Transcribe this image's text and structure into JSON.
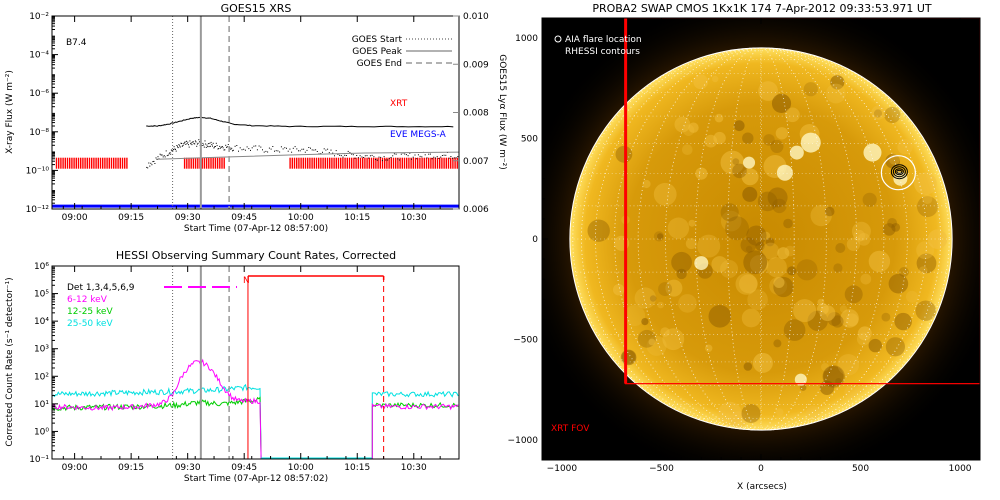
{
  "chart_data": [
    {
      "type": "line",
      "title": "GOES15 XRS",
      "xlabel": "Start Time (07-Apr-12 08:57:00)",
      "ylabel": "X-ray Flux (W m⁻²)",
      "ylabel2": "GOES15 Lyα Flux (W m⁻²)",
      "annotation": "B7.4",
      "xlim_min": [
        -3,
        105
      ],
      "x_tick_labels": [
        "09:00",
        "09:15",
        "09:30",
        "09:45",
        "10:00",
        "10:15",
        "10:30"
      ],
      "x_tick_minutes": [
        3,
        18,
        33,
        48,
        63,
        78,
        93
      ],
      "ylim_log": [
        -12,
        -2
      ],
      "y_tick_labels": [
        "10⁻¹²",
        "10⁻¹⁰",
        "10⁻⁸",
        "10⁻⁶",
        "10⁻⁴",
        "10⁻²"
      ],
      "y_tick_exps": [
        -12,
        -10,
        -8,
        -6,
        -4,
        -2
      ],
      "ylim2": [
        0.006,
        0.01
      ],
      "y2_tick_labels": [
        "0.006",
        "0.007",
        "0.008",
        "0.009",
        "0.010"
      ],
      "y2_tick_values": [
        0.006,
        0.007,
        0.008,
        0.009,
        0.01
      ],
      "goes_lines_min": {
        "start": 29,
        "peak": 36.5,
        "end": 44
      },
      "legend": [
        {
          "label": "GOES Start",
          "style": "dotted"
        },
        {
          "label": "GOES Peak",
          "style": "solid"
        },
        {
          "label": "GOES End",
          "style": "dashed"
        }
      ],
      "series": [
        {
          "name": "XRT",
          "color": "#ff0000",
          "label_at": [
            85,
            -7.1
          ]
        },
        {
          "name": "EVE MEGS-A",
          "color": "#0000ff",
          "label_at": [
            85,
            -9.2
          ]
        },
        {
          "name": "GOES long",
          "color": "#000000",
          "x": [
            22,
            25,
            28,
            31,
            34,
            36.5,
            39,
            42,
            45,
            50,
            60,
            75,
            90,
            105
          ],
          "y_log": [
            -7.7,
            -7.7,
            -7.6,
            -7.45,
            -7.3,
            -7.25,
            -7.3,
            -7.45,
            -7.6,
            -7.68,
            -7.72,
            -7.72,
            -7.73,
            -7.73
          ]
        },
        {
          "name": "GOES short",
          "color": "#000000",
          "x": [
            22,
            28,
            32,
            36,
            40,
            45,
            55,
            65,
            75,
            85,
            95,
            105
          ],
          "y_log": [
            -9.7,
            -9.0,
            -8.65,
            -8.55,
            -8.7,
            -8.8,
            -8.9,
            -8.9,
            -9.15,
            -9.3,
            -9.2,
            -9.2
          ]
        },
        {
          "name": "Lyα",
          "color": "#888888",
          "x": [
            25,
            40,
            60,
            80,
            105
          ],
          "y": [
            0.00703,
            0.00707,
            0.00712,
            0.00716,
            0.00718
          ]
        }
      ],
      "xrt_bars_min": [
        [
          -2,
          17
        ],
        [
          32,
          43
        ],
        [
          60,
          105
        ]
      ],
      "eve_level_log": -11.85
    },
    {
      "type": "line",
      "title": "HESSI Observing Summary Count Rates, Corrected",
      "xlabel": "Start Time (07-Apr-12 08:57:02)",
      "ylabel": "Corrected Count Rate (s⁻¹ detector⁻¹)",
      "xlim_min": [
        -3,
        105
      ],
      "x_tick_labels": [
        "09:00",
        "09:15",
        "09:30",
        "09:45",
        "10:00",
        "10:15",
        "10:30"
      ],
      "x_tick_minutes": [
        3,
        18,
        33,
        48,
        63,
        78,
        93
      ],
      "ylim_log": [
        -1,
        6
      ],
      "y_tick_labels": [
        "10⁻¹",
        "10⁰",
        "10¹",
        "10²",
        "10³",
        "10⁴",
        "10⁵",
        "10⁶"
      ],
      "y_tick_exps": [
        -1,
        0,
        1,
        2,
        3,
        4,
        5,
        6
      ],
      "goes_lines_min": {
        "start": 29,
        "peak": 36.5,
        "end": 44
      },
      "red_lines_min": {
        "solid": 49,
        "dashed": 85
      },
      "night_label": "N",
      "legend_title": "Det 1,3,4,5,6,9",
      "series": [
        {
          "name": "6-12 keV",
          "color": "#ff00ff",
          "x": [
            -3,
            10,
            20,
            26,
            29,
            31,
            33,
            35,
            37,
            39,
            41,
            43,
            45,
            47,
            49,
            52.5
          ],
          "y_log": [
            0.9,
            0.85,
            0.9,
            1.0,
            1.3,
            1.9,
            2.3,
            2.5,
            2.5,
            2.3,
            1.9,
            1.5,
            1.2,
            1.1,
            1.1,
            1.1
          ]
        },
        {
          "name": "12-25 keV",
          "color": "#00cc00",
          "x": [
            -3,
            20,
            30,
            36,
            42,
            49,
            52.5
          ],
          "y_log": [
            0.85,
            0.9,
            0.95,
            1.05,
            1.0,
            1.1,
            1.15
          ]
        },
        {
          "name": "25-50 keV",
          "color": "#00e0e0",
          "x": [
            -3,
            15,
            30,
            40,
            45,
            49,
            52.5
          ],
          "y_log": [
            1.35,
            1.4,
            1.45,
            1.5,
            1.55,
            1.6,
            1.6
          ]
        }
      ],
      "after_gap": {
        "start_min": 82,
        "end_min": 105,
        "cyan": 1.35,
        "magenta": 0.9,
        "green": 0.95
      }
    },
    {
      "type": "image",
      "title": "PROBA2 SWAP CMOS 1Kx1K 174   7-Apr-2012 09:33:53.971 UT",
      "xlabel": "X (arcsecs)",
      "xlim": [
        -1100,
        1100
      ],
      "ylim": [
        -1100,
        1100
      ],
      "x_tick_labels": [
        "−1000",
        "−500",
        "0",
        "500",
        "1000"
      ],
      "x_tick_values": [
        -1000,
        -500,
        0,
        500,
        1000
      ],
      "y_tick_labels": [
        "1000",
        "500",
        "0",
        "−500",
        "−1000"
      ],
      "y_tick_values": [
        1000,
        500,
        0,
        -500,
        -1000
      ],
      "legend": [
        {
          "label": "AIA flare location"
        },
        {
          "label": "RHESSI contours"
        }
      ],
      "xrt_fov_label": "XRT FOV",
      "xrt_fov": {
        "x0": -680,
        "y0": -720,
        "x1": 1100,
        "y1": 1100
      },
      "solar_radius": 960,
      "flare_location": [
        690,
        330
      ]
    }
  ]
}
